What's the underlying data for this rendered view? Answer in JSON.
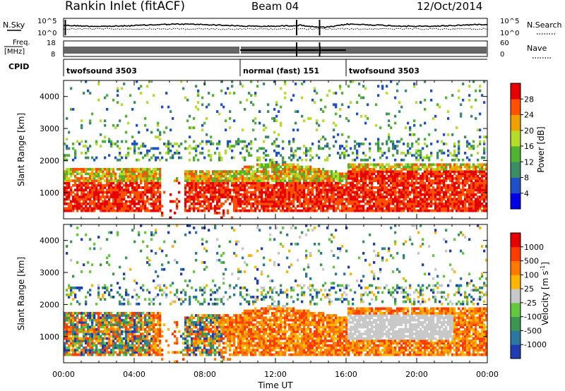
{
  "header": {
    "station": "Rankin Inlet (fitACF)",
    "beam": "Beam 04",
    "date": "12/Oct/2014"
  },
  "top_panels": {
    "nsky_label": "N.Sky",
    "nsky_ticks": [
      "10^5",
      "10^0"
    ],
    "nsearch_label": "N.Search",
    "nsearch_ticks": [
      "10^5",
      "10^0"
    ],
    "freq_label": "Freq.",
    "freq_unit": "[MHz]",
    "freq_ticks": [
      "18",
      "8"
    ],
    "nave_label": "Nave",
    "nave_ticks": [
      "60",
      "0"
    ],
    "cpid_label": "CPID",
    "cpid_segments": [
      {
        "label": "twofsound 3503",
        "start_hour": 0,
        "end_hour": 10
      },
      {
        "label": "normal (fast) 151",
        "start_hour": 10,
        "end_hour": 16
      },
      {
        "label": "twofsound 3503",
        "start_hour": 16,
        "end_hour": 24
      }
    ]
  },
  "chart_data": [
    {
      "type": "heatmap",
      "title": "Power",
      "ylabel": "Slant Range [km]",
      "xlabel": "Time UT",
      "ylim": [
        180,
        4500
      ],
      "y_ticks": [
        "1000",
        "2000",
        "3000",
        "4000"
      ],
      "x_ticks": [
        "00:00",
        "04:00",
        "08:00",
        "12:00",
        "16:00",
        "20:00",
        "00:00"
      ],
      "colorbar_label": "Power [dB]",
      "colorbar_ticks": [
        "4",
        "8",
        "12",
        "16",
        "20",
        "24",
        "28"
      ],
      "colorbar_colors": [
        "#0000e6",
        "#1e50c8",
        "#3c8c64",
        "#50b432",
        "#b4dc28",
        "#f0a000",
        "#ff5000",
        "#e60000"
      ]
    },
    {
      "type": "heatmap",
      "title": "Velocity",
      "ylabel": "Slant Range [km]",
      "xlabel": "Time UT",
      "ylim": [
        180,
        4500
      ],
      "y_ticks": [
        "1000",
        "2000",
        "3000",
        "4000"
      ],
      "x_ticks": [
        "00:00",
        "04:00",
        "08:00",
        "12:00",
        "16:00",
        "20:00",
        "00:00"
      ],
      "colorbar_label": "Velocity [m s",
      "colorbar_label_sup": "-1",
      "colorbar_label_end": "]",
      "colorbar_ticks": [
        "1000",
        "500",
        "100",
        "25",
        "-25",
        "-100",
        "-500",
        "-1000"
      ],
      "colorbar_colors": [
        "#1e3cb4",
        "#2878a0",
        "#3c9650",
        "#64c83c",
        "#c8c8c8",
        "#ffb400",
        "#ff7800",
        "#ff3c00",
        "#e60000"
      ]
    }
  ]
}
